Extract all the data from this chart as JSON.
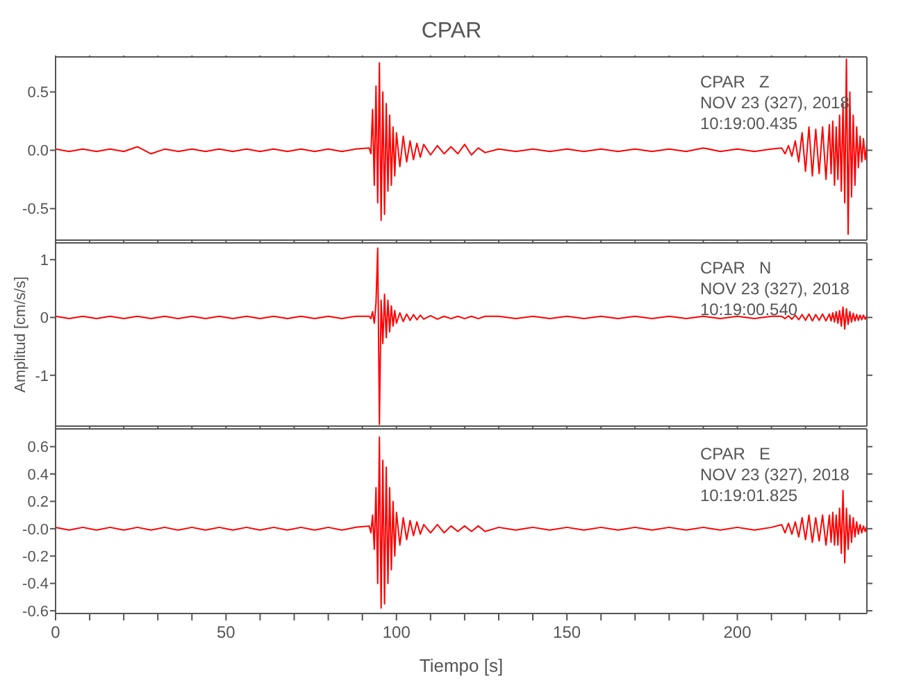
{
  "chart_data": [
    {
      "type": "line",
      "title": "CPAR",
      "annotations": [
        "CPAR   Z",
        "NOV 23 (327), 2018",
        "10:19:00.435"
      ],
      "tick_labels": "y",
      "x": [
        0,
        4,
        8,
        12,
        16,
        20,
        24,
        28,
        32,
        36,
        40,
        44,
        48,
        52,
        56,
        60,
        64,
        68,
        72,
        76,
        80,
        84,
        88,
        92,
        92.5,
        93,
        93.5,
        94,
        94.5,
        95,
        95.5,
        96,
        96.5,
        97,
        97.5,
        98,
        98.5,
        99,
        99.5,
        100,
        101,
        102,
        103,
        104,
        105,
        106,
        107,
        108,
        110,
        112,
        114,
        116,
        118,
        120,
        122,
        124,
        126,
        130,
        135,
        140,
        145,
        150,
        155,
        160,
        165,
        170,
        175,
        180,
        185,
        190,
        195,
        200,
        205,
        210,
        213,
        214,
        215,
        216,
        217,
        218,
        219,
        220,
        221,
        222,
        223,
        224,
        225,
        226,
        227,
        227.5,
        228,
        228.5,
        229,
        229.5,
        230,
        230.5,
        231,
        231.5,
        232,
        232.5,
        233,
        233.5,
        234,
        234.5,
        235,
        235.5,
        236,
        236.5,
        237,
        237.5,
        238
      ],
      "series": [
        {
          "color": "#ff0000",
          "values": [
            0.01,
            -0.01,
            0.01,
            -0.01,
            0.01,
            -0.01,
            0.03,
            -0.03,
            0.01,
            -0.01,
            0.01,
            -0.01,
            0.01,
            -0.01,
            0.01,
            -0.01,
            0.01,
            -0.01,
            0.01,
            -0.01,
            0.01,
            -0.01,
            0.01,
            0.02,
            -0.03,
            0.35,
            -0.3,
            0.55,
            -0.45,
            0.75,
            -0.6,
            0.5,
            -0.55,
            0.4,
            -0.35,
            0.3,
            -0.3,
            0.2,
            -0.22,
            0.15,
            -0.14,
            0.12,
            -0.1,
            0.08,
            -0.08,
            0.06,
            -0.06,
            0.05,
            -0.04,
            0.04,
            -0.03,
            0.03,
            -0.03,
            0.05,
            -0.04,
            0.02,
            -0.02,
            0.01,
            -0.01,
            0.01,
            -0.01,
            0.01,
            -0.01,
            0.01,
            -0.01,
            0.01,
            -0.01,
            0.01,
            -0.01,
            0.02,
            -0.01,
            0.01,
            -0.01,
            0.01,
            0.02,
            -0.03,
            0.04,
            -0.05,
            0.08,
            -0.1,
            0.15,
            -0.18,
            0.2,
            -0.22,
            0.18,
            -0.2,
            0.2,
            -0.25,
            0.22,
            -0.2,
            0.25,
            -0.3,
            0.2,
            -0.25,
            0.3,
            -0.35,
            0.4,
            -0.45,
            0.78,
            -0.72,
            0.5,
            -0.4,
            0.3,
            -0.3,
            0.2,
            -0.15,
            0.12,
            -0.1,
            0.1,
            -0.08,
            0.05
          ]
        }
      ],
      "xlim": [
        0,
        238
      ],
      "xticks": [
        0,
        {
          "value": 10,
          "label": null
        },
        {
          "value": 20,
          "label": null
        },
        {
          "value": 30,
          "label": null
        },
        {
          "value": 40,
          "label": null
        },
        50,
        {
          "value": 60,
          "label": null
        },
        {
          "value": 70,
          "label": null
        },
        {
          "value": 80,
          "label": null
        },
        {
          "value": 90,
          "label": null
        },
        100,
        {
          "value": 110,
          "label": null
        },
        {
          "value": 120,
          "label": null
        },
        {
          "value": 130,
          "label": null
        },
        {
          "value": 140,
          "label": null
        },
        150,
        {
          "value": 160,
          "label": null
        },
        {
          "value": 170,
          "label": null
        },
        {
          "value": 180,
          "label": null
        },
        {
          "value": 190,
          "label": null
        },
        200,
        {
          "value": 210,
          "label": null
        },
        {
          "value": 220,
          "label": null
        },
        {
          "value": 230,
          "label": null
        }
      ],
      "ylim": [
        -0.77,
        0.8
      ],
      "yticks": [
        -0.5,
        {
          "value": 0,
          "label": "0.0"
        },
        0.5
      ]
    },
    {
      "type": "line",
      "ylabel": "Amplitud [cm/s/s]",
      "annotations": [
        "CPAR   N",
        "NOV 23 (327), 2018",
        "10:19:00.540"
      ],
      "tick_labels": "y",
      "x": [
        0,
        4,
        8,
        12,
        16,
        20,
        24,
        28,
        32,
        36,
        40,
        44,
        48,
        52,
        56,
        60,
        64,
        68,
        72,
        76,
        80,
        84,
        88,
        92,
        92.5,
        93,
        93.5,
        94,
        94.5,
        95,
        95.5,
        96,
        96.5,
        97,
        97.5,
        98,
        98.5,
        99,
        99.5,
        100,
        101,
        102,
        103,
        104,
        105,
        106,
        107,
        108,
        110,
        112,
        114,
        116,
        118,
        120,
        122,
        124,
        126,
        130,
        135,
        140,
        145,
        150,
        155,
        160,
        165,
        170,
        175,
        180,
        185,
        190,
        195,
        200,
        205,
        210,
        213,
        214,
        215,
        216,
        217,
        218,
        219,
        220,
        221,
        222,
        223,
        224,
        225,
        226,
        227,
        227.5,
        228,
        228.5,
        229,
        229.5,
        230,
        230.5,
        231,
        231.5,
        232,
        232.5,
        233,
        233.5,
        234,
        234.5,
        235,
        235.5,
        236,
        236.5,
        237,
        237.5,
        238
      ],
      "series": [
        {
          "color": "#ff0000",
          "values": [
            0.02,
            -0.02,
            0.02,
            -0.02,
            0.02,
            -0.02,
            0.02,
            -0.02,
            0.02,
            -0.02,
            0.02,
            -0.02,
            0.02,
            -0.02,
            0.02,
            -0.02,
            0.02,
            -0.02,
            0.02,
            -0.02,
            0.02,
            -0.02,
            0.02,
            0.02,
            -0.02,
            0.1,
            -0.1,
            0.25,
            1.2,
            -1.85,
            0.3,
            -0.45,
            0.4,
            -0.35,
            0.3,
            -0.25,
            0.2,
            -0.15,
            0.12,
            -0.1,
            0.08,
            -0.07,
            0.06,
            -0.05,
            0.05,
            -0.04,
            0.04,
            -0.03,
            0.03,
            -0.03,
            0.02,
            -0.02,
            0.02,
            -0.02,
            0.02,
            -0.02,
            0.02,
            0.02,
            -0.02,
            0.02,
            -0.02,
            0.02,
            -0.02,
            0.02,
            -0.02,
            0.02,
            -0.02,
            0.02,
            -0.02,
            0.02,
            -0.02,
            0.02,
            -0.02,
            0.02,
            0.02,
            -0.02,
            0.03,
            -0.03,
            0.04,
            -0.04,
            0.05,
            -0.05,
            0.06,
            -0.06,
            0.05,
            -0.05,
            0.06,
            -0.06,
            0.06,
            -0.06,
            0.08,
            -0.08,
            0.1,
            -0.1,
            0.12,
            -0.15,
            0.18,
            -0.2,
            0.15,
            -0.12,
            0.1,
            -0.08,
            0.07,
            -0.06,
            0.05,
            -0.05,
            0.04,
            -0.04,
            0.04,
            -0.03,
            0.03
          ]
        }
      ],
      "xlim": [
        0,
        238
      ],
      "xticks": [
        0,
        {
          "value": 10,
          "label": null
        },
        {
          "value": 20,
          "label": null
        },
        {
          "value": 30,
          "label": null
        },
        {
          "value": 40,
          "label": null
        },
        50,
        {
          "value": 60,
          "label": null
        },
        {
          "value": 70,
          "label": null
        },
        {
          "value": 80,
          "label": null
        },
        {
          "value": 90,
          "label": null
        },
        100,
        {
          "value": 110,
          "label": null
        },
        {
          "value": 120,
          "label": null
        },
        {
          "value": 130,
          "label": null
        },
        {
          "value": 140,
          "label": null
        },
        150,
        {
          "value": 160,
          "label": null
        },
        {
          "value": 170,
          "label": null
        },
        {
          "value": 180,
          "label": null
        },
        {
          "value": 190,
          "label": null
        },
        200,
        {
          "value": 210,
          "label": null
        },
        {
          "value": 220,
          "label": null
        },
        {
          "value": 230,
          "label": null
        }
      ],
      "ylim": [
        -1.88,
        1.29
      ],
      "yticks": [
        -1,
        0,
        1
      ]
    },
    {
      "type": "line",
      "xlabel": "Tiempo [s]",
      "annotations": [
        "CPAR   E",
        "NOV 23 (327), 2018",
        "10:19:01.825"
      ],
      "x": [
        0,
        4,
        8,
        12,
        16,
        20,
        24,
        28,
        32,
        36,
        40,
        44,
        48,
        52,
        56,
        60,
        64,
        68,
        72,
        76,
        80,
        84,
        88,
        92,
        92.5,
        93,
        93.5,
        94,
        94.5,
        95,
        95.5,
        96,
        96.5,
        97,
        97.5,
        98,
        98.5,
        99,
        99.5,
        100,
        101,
        102,
        103,
        104,
        105,
        106,
        107,
        108,
        110,
        112,
        114,
        116,
        118,
        120,
        122,
        124,
        126,
        130,
        135,
        140,
        145,
        150,
        155,
        160,
        165,
        170,
        175,
        180,
        185,
        190,
        195,
        200,
        205,
        210,
        213,
        214,
        215,
        216,
        217,
        218,
        219,
        220,
        221,
        222,
        223,
        224,
        225,
        226,
        227,
        227.5,
        228,
        228.5,
        229,
        229.5,
        230,
        230.5,
        231,
        231.5,
        232,
        232.5,
        233,
        233.5,
        234,
        234.5,
        235,
        235.5,
        236,
        236.5,
        237,
        237.5,
        238
      ],
      "series": [
        {
          "color": "#ff0000",
          "values": [
            0.01,
            -0.01,
            0.01,
            -0.01,
            0.01,
            -0.01,
            0.01,
            -0.01,
            0.01,
            -0.01,
            0.01,
            -0.01,
            0.01,
            -0.01,
            0.01,
            -0.01,
            0.01,
            -0.01,
            0.01,
            -0.01,
            0.01,
            -0.01,
            0.01,
            0.02,
            -0.03,
            0.1,
            -0.15,
            0.3,
            -0.4,
            0.67,
            -0.58,
            0.5,
            -0.55,
            0.45,
            -0.4,
            0.3,
            -0.3,
            0.2,
            -0.2,
            0.12,
            -0.12,
            0.08,
            -0.08,
            0.06,
            -0.05,
            0.05,
            -0.04,
            0.03,
            -0.03,
            0.03,
            -0.03,
            0.02,
            -0.02,
            0.02,
            -0.02,
            0.02,
            -0.02,
            0.01,
            -0.01,
            0.01,
            -0.01,
            0.01,
            -0.01,
            0.01,
            -0.01,
            0.01,
            -0.01,
            0.01,
            -0.01,
            0.01,
            -0.01,
            0.01,
            -0.01,
            0.01,
            0.03,
            -0.03,
            0.04,
            -0.04,
            0.05,
            -0.06,
            0.08,
            -0.08,
            0.1,
            -0.1,
            0.08,
            -0.09,
            0.1,
            -0.12,
            0.1,
            -0.1,
            0.12,
            -0.12,
            0.1,
            -0.12,
            0.15,
            -0.18,
            0.28,
            -0.25,
            0.15,
            -0.15,
            0.1,
            -0.1,
            0.08,
            -0.06,
            0.05,
            -0.04,
            0.03,
            -0.03,
            0.02,
            -0.02,
            0.02
          ]
        }
      ],
      "xlim": [
        0,
        238
      ],
      "xticks": [
        0,
        {
          "value": 10,
          "label": null
        },
        {
          "value": 20,
          "label": null
        },
        {
          "value": 30,
          "label": null
        },
        {
          "value": 40,
          "label": null
        },
        50,
        {
          "value": 60,
          "label": null
        },
        {
          "value": 70,
          "label": null
        },
        {
          "value": 80,
          "label": null
        },
        {
          "value": 90,
          "label": null
        },
        100,
        {
          "value": 110,
          "label": null
        },
        {
          "value": 120,
          "label": null
        },
        {
          "value": 130,
          "label": null
        },
        {
          "value": 140,
          "label": null
        },
        150,
        {
          "value": 160,
          "label": null
        },
        {
          "value": 170,
          "label": null
        },
        {
          "value": 180,
          "label": null
        },
        {
          "value": 190,
          "label": null
        },
        200,
        {
          "value": 210,
          "label": null
        },
        {
          "value": 220,
          "label": null
        },
        {
          "value": 230,
          "label": null
        }
      ],
      "ylim": [
        -0.62,
        0.73
      ],
      "yticks": [
        -0.6,
        -0.4,
        -0.2,
        {
          "value": 0,
          "label": "-0.0"
        },
        0.2,
        0.4,
        0.6
      ]
    }
  ]
}
